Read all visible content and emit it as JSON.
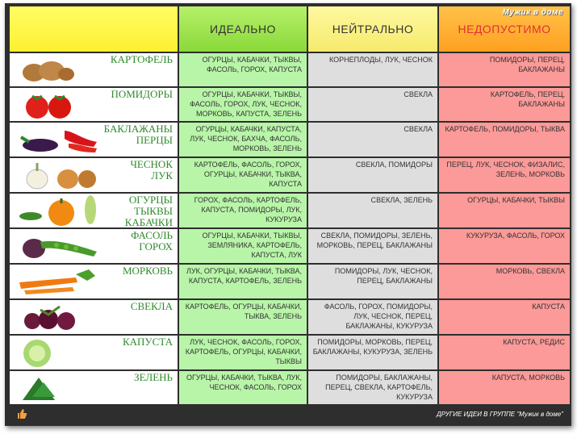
{
  "header": {
    "ideal": "ИДЕАЛЬНО",
    "neutral": "НЕЙТРАЛЬНО",
    "bad": "НЕДОПУСТИМО",
    "brand": "Мужик в доме"
  },
  "rows": [
    {
      "name": "КАРТОФЕЛЬ",
      "ideal": "ОГУРЦЫ, КАБАЧКИ, ТЫКВЫ, ФАСОЛЬ, ГОРОХ, КАПУСТА",
      "neutral": "КОРНЕПЛОДЫ, ЛУК, ЧЕСНОК",
      "bad": "ПОМИДОРЫ, ПЕРЕЦ, БАКЛАЖАНЫ"
    },
    {
      "name": "ПОМИДОРЫ",
      "ideal": "ОГУРЦЫ, КАБАЧКИ, ТЫКВЫ, ФАСОЛЬ, ГОРОХ, ЛУК, ЧЕСНОК, МОРКОВЬ, КАПУСТА, ЗЕЛЕНЬ",
      "neutral": "СВЕКЛА",
      "bad": "КАРТОФЕЛЬ, ПЕРЕЦ, БАКЛАЖАНЫ"
    },
    {
      "name": "БАКЛАЖАНЫ ПЕРЦЫ",
      "ideal": "ОГУРЦЫ, КАБАЧКИ, КАПУСТА, ЛУК, ЧЕСНОК, БАХЧА, ФАСОЛЬ, МОРКОВЬ, ЗЕЛЕНЬ",
      "neutral": "СВЕКЛА",
      "bad": "КАРТОФЕЛЬ, ПОМИДОРЫ, ТЫКВА"
    },
    {
      "name": "ЧЕСНОК ЛУК",
      "ideal": "КАРТОФЕЛЬ, ФАСОЛЬ, ГОРОХ, ОГУРЦЫ, КАБАЧКИ, ТЫКВА, КАПУСТА",
      "neutral": "СВЕКЛА, ПОМИДОРЫ",
      "bad": "ПЕРЕЦ, ЛУК, ЧЕСНОК, ФИЗАЛИС, ЗЕЛЕНЬ, МОРКОВЬ"
    },
    {
      "name": "ОГУРЦЫ ТЫКВЫ КАБАЧКИ",
      "ideal": "ГОРОХ, ФАСОЛЬ, КАРТОФЕЛЬ, КАПУСТА, ПОМИДОРЫ, ЛУК, КУКУРУЗА",
      "neutral": "СВЕКЛА, ЗЕЛЕНЬ",
      "bad": "ОГУРЦЫ, КАБАЧКИ, ТЫКВЫ"
    },
    {
      "name": "ФАСОЛЬ ГОРОХ",
      "ideal": "ОГУРЦЫ, КАБАЧКИ, ТЫКВЫ, ЗЕМЛЯНИКА, КАРТОФЕЛЬ, КАПУСТА, ЛУК",
      "neutral": "СВЕКЛА, ПОМИДОРЫ, ЗЕЛЕНЬ, МОРКОВЬ, ПЕРЕЦ, БАКЛАЖАНЫ",
      "bad": "КУКУРУЗА, ФАСОЛЬ, ГОРОХ"
    },
    {
      "name": "МОРКОВЬ",
      "ideal": "ЛУК, ОГУРЦЫ, КАБАЧКИ, ТЫКВА, КАПУСТА, КАРТОФЕЛЬ, ЗЕЛЕНЬ",
      "neutral": "ПОМИДОРЫ, ЛУК, ЧЕСНОК, ПЕРЕЦ, БАКЛАЖАНЫ",
      "bad": "МОРКОВЬ, СВЕКЛА"
    },
    {
      "name": "СВЕКЛА",
      "ideal": "КАРТОФЕЛЬ, ОГУРЦЫ, КАБАЧКИ, ТЫКВА, ЗЕЛЕНЬ",
      "neutral": "ФАСОЛЬ, ГОРОХ, ПОМИДОРЫ, ЛУК, ЧЕСНОК, ПЕРЕЦ, БАКЛАЖАНЫ, КУКУРУЗА",
      "bad": "КАПУСТА"
    },
    {
      "name": "КАПУСТА",
      "ideal": "ЛУК, ЧЕСНОК, ФАСОЛЬ, ГОРОХ, КАРТОФЕЛЬ, ОГУРЦЫ, КАБАЧКИ, ТЫКВЫ",
      "neutral": "ПОМИДОРЫ, МОРКОВЬ, ПЕРЕЦ, БАКЛАЖАНЫ, КУКУРУЗА, ЗЕЛЕНЬ",
      "bad": "КАПУСТА, РЕДИС"
    },
    {
      "name": "ЗЕЛЕНЬ",
      "ideal": "ОГУРЦЫ, КАБАЧКИ, ТЫКВА, ЛУК, ЧЕСНОК, ФАСОЛЬ, ГОРОХ",
      "neutral": "ПОМИДОРЫ, БАКЛАЖАНЫ, ПЕРЕЦ, СВЕКЛА, КАРТОФЕЛЬ, КУКУРУЗА",
      "bad": "КАПУСТА, МОРКОВЬ"
    }
  ],
  "footer": {
    "text": "ДРУГИЕ ИДЕИ В ГРУППЕ \"Мужик в доме\""
  }
}
